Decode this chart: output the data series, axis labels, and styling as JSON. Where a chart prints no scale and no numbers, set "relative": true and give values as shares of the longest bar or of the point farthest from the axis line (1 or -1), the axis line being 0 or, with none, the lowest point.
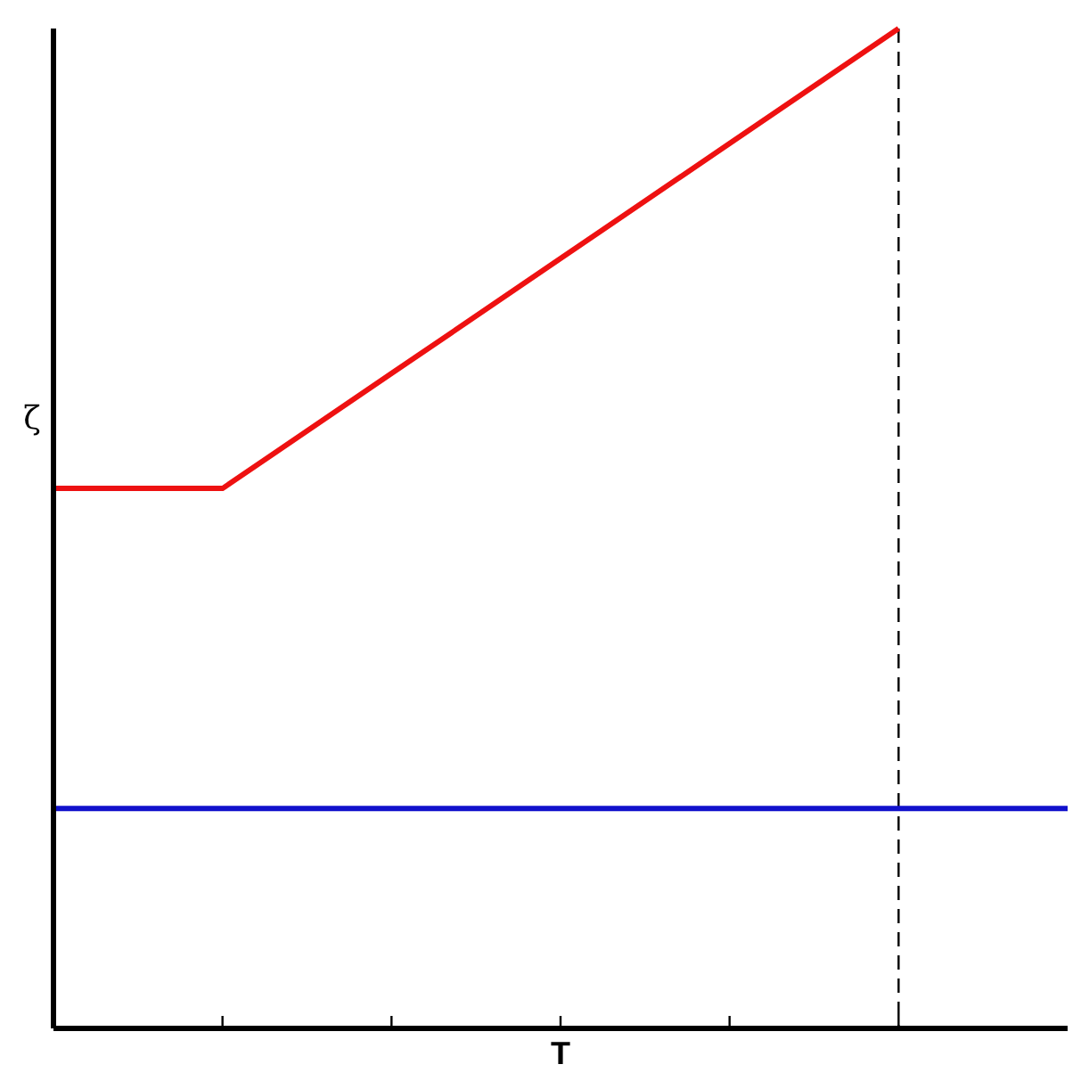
{
  "chart_data": {
    "type": "line",
    "relative": true,
    "xlabel": "T",
    "ylabel": "ζ",
    "categories": [
      null,
      null,
      null,
      null,
      null,
      null,
      null
    ],
    "series": [
      {
        "color": "#ee1111",
        "values": [
          0.54,
          0.54,
          0.655,
          0.77,
          0.885,
          1,
          null
        ]
      },
      {
        "color": "#1111cc",
        "values": [
          0.22,
          0.22,
          0.22,
          0.22,
          0.22,
          0.22,
          0.22
        ]
      }
    ],
    "marker": "none",
    "line_style": "solid"
  }
}
